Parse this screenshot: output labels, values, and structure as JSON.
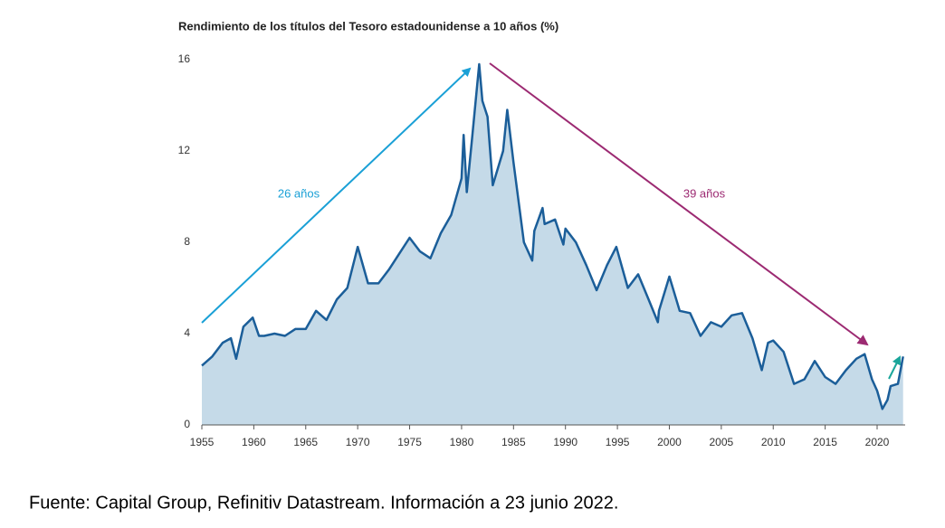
{
  "chart_data": {
    "type": "area",
    "title": "Rendimiento de los títulos del Tesoro estadounidense a 10 años (%)",
    "annotations": [
      "26 años",
      "39 años"
    ],
    "source": "Fuente: Capital Group, Refinitiv Datastream. Información a 23 junio 2022.",
    "x": [
      1955,
      1956,
      1957,
      1957.8,
      1958.3,
      1959,
      1959.9,
      1960.5,
      1961,
      1962,
      1963,
      1964,
      1965,
      1966,
      1967,
      1968,
      1969,
      1970,
      1971,
      1972,
      1973,
      1974,
      1975,
      1976,
      1977,
      1978,
      1979,
      1980,
      1980.2,
      1980.5,
      1981,
      1981.7,
      1982,
      1982.5,
      1983,
      1984,
      1984.4,
      1985,
      1986,
      1986.8,
      1987,
      1987.8,
      1988,
      1989,
      1989.8,
      1990,
      1991,
      1992,
      1993,
      1994,
      1994.9,
      1996,
      1997,
      1998,
      1998.9,
      1999,
      2000,
      2001,
      2002,
      2003,
      2004,
      2005,
      2006,
      2007,
      2008,
      2008.9,
      2009.5,
      2010,
      2011,
      2012,
      2013,
      2014,
      2015,
      2016,
      2017,
      2018,
      2018.8,
      2019.5,
      2020,
      2020.5,
      2021,
      2021.3,
      2022,
      2022.5
    ],
    "values": [
      2.6,
      3.0,
      3.6,
      3.8,
      2.9,
      4.3,
      4.7,
      3.9,
      3.9,
      4.0,
      3.9,
      4.2,
      4.2,
      5.0,
      4.6,
      5.5,
      6.0,
      7.8,
      6.2,
      6.2,
      6.8,
      7.5,
      8.2,
      7.6,
      7.3,
      8.4,
      9.2,
      10.8,
      12.7,
      10.2,
      12.5,
      15.8,
      14.2,
      13.5,
      10.5,
      12.0,
      13.8,
      11.5,
      8.0,
      7.2,
      8.5,
      9.5,
      8.8,
      9.0,
      7.9,
      8.6,
      8.0,
      7.0,
      5.9,
      7.0,
      7.8,
      6.0,
      6.6,
      5.5,
      4.5,
      5.0,
      6.5,
      5.0,
      4.9,
      3.9,
      4.5,
      4.3,
      4.8,
      4.9,
      3.8,
      2.4,
      3.6,
      3.7,
      3.2,
      1.8,
      2.0,
      2.8,
      2.1,
      1.8,
      2.4,
      2.9,
      3.1,
      2.0,
      1.5,
      0.7,
      1.1,
      1.7,
      1.8,
      3.0
    ],
    "color": "#1b5e99",
    "fill": "#c5dae8",
    "xlim": [
      1955,
      2022.7
    ],
    "xticks": [
      1955,
      1960,
      1965,
      1970,
      1975,
      1980,
      1985,
      1990,
      1995,
      2000,
      2005,
      2010,
      2015,
      2020
    ],
    "ylim": [
      0,
      16
    ],
    "yticks": [
      0,
      4,
      8,
      12,
      16
    ]
  }
}
